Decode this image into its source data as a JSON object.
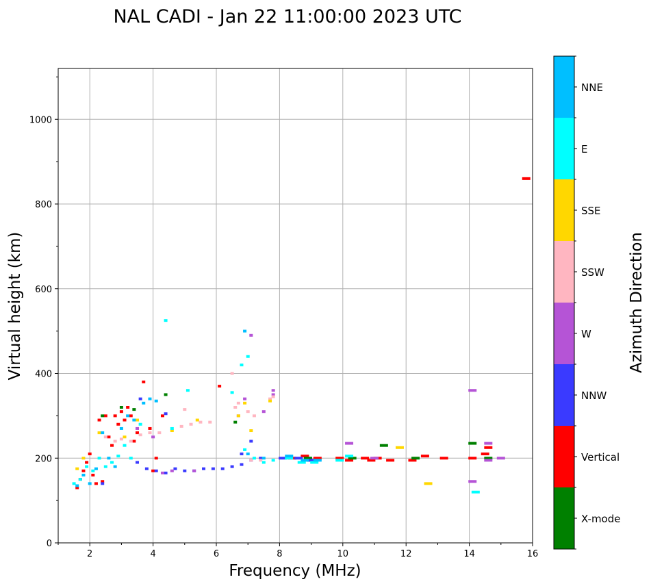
{
  "chart_data": {
    "type": "scatter",
    "title": "NAL CADI - Jan 22 11:00:00 2023 UTC",
    "xlabel": "Frequency (MHz)",
    "ylabel": "Virtual height (km)",
    "xlim": [
      1,
      16
    ],
    "ylim": [
      0,
      1120
    ],
    "xticks": [
      2,
      4,
      6,
      8,
      10,
      12,
      14,
      16
    ],
    "yticks": [
      0,
      200,
      400,
      600,
      800,
      1000
    ],
    "grid": true,
    "colorbar": {
      "label": "Azimuth Direction",
      "categories": [
        "X-mode",
        "Vertical",
        "NNW",
        "W",
        "SSW",
        "SSE",
        "E",
        "NNE"
      ],
      "colors": {
        "X-mode": "#008000",
        "Vertical": "#ff0000",
        "NNW": "#3a3aff",
        "W": "#b554d6",
        "SSW": "#ffb6c1",
        "SSE": "#ffd700",
        "E": "#00ffff",
        "NNE": "#00bfff"
      }
    },
    "series": [
      {
        "name": "Vertical",
        "points": [
          [
            1.6,
            130
          ],
          [
            1.7,
            150
          ],
          [
            1.8,
            170
          ],
          [
            1.9,
            190
          ],
          [
            2.0,
            210
          ],
          [
            2.1,
            160
          ],
          [
            2.2,
            140
          ],
          [
            2.3,
            290
          ],
          [
            2.4,
            145
          ],
          [
            2.5,
            300
          ],
          [
            2.6,
            250
          ],
          [
            2.7,
            230
          ],
          [
            2.8,
            300
          ],
          [
            2.9,
            280
          ],
          [
            3.0,
            310
          ],
          [
            3.1,
            290
          ],
          [
            3.2,
            320
          ],
          [
            3.3,
            300
          ],
          [
            3.4,
            240
          ],
          [
            3.5,
            260
          ],
          [
            3.7,
            380
          ],
          [
            3.9,
            270
          ],
          [
            4.0,
            170
          ],
          [
            4.1,
            200
          ],
          [
            4.3,
            300
          ],
          [
            6.1,
            370
          ],
          [
            8.4,
            200
          ],
          [
            8.8,
            205
          ],
          [
            9.0,
            195
          ],
          [
            9.2,
            200
          ],
          [
            9.9,
            200
          ],
          [
            10.2,
            195
          ],
          [
            10.7,
            200
          ],
          [
            10.9,
            195
          ],
          [
            11.1,
            200
          ],
          [
            11.5,
            195
          ],
          [
            12.2,
            195
          ],
          [
            12.6,
            205
          ],
          [
            13.2,
            200
          ],
          [
            14.1,
            200
          ],
          [
            14.5,
            210
          ],
          [
            14.6,
            225
          ],
          [
            15.8,
            860
          ]
        ]
      },
      {
        "name": "X-mode",
        "points": [
          [
            2.4,
            300
          ],
          [
            3.0,
            320
          ],
          [
            3.4,
            315
          ],
          [
            4.4,
            350
          ],
          [
            6.6,
            285
          ],
          [
            8.9,
            200
          ],
          [
            10.3,
            200
          ],
          [
            11.3,
            230
          ],
          [
            12.3,
            200
          ],
          [
            14.1,
            235
          ],
          [
            14.6,
            200
          ]
        ]
      },
      {
        "name": "NNW",
        "points": [
          [
            2.4,
            140
          ],
          [
            3.5,
            190
          ],
          [
            3.8,
            175
          ],
          [
            4.1,
            170
          ],
          [
            4.4,
            165
          ],
          [
            4.7,
            175
          ],
          [
            5.0,
            170
          ],
          [
            5.3,
            170
          ],
          [
            5.6,
            175
          ],
          [
            5.9,
            175
          ],
          [
            6.2,
            175
          ],
          [
            6.5,
            180
          ],
          [
            6.8,
            185
          ],
          [
            7.1,
            195
          ],
          [
            7.4,
            200
          ],
          [
            8.1,
            200
          ],
          [
            8.6,
            200
          ],
          [
            9.0,
            195
          ],
          [
            6.8,
            210
          ],
          [
            7.1,
            240
          ],
          [
            4.4,
            305
          ],
          [
            3.6,
            340
          ]
        ]
      },
      {
        "name": "W",
        "points": [
          [
            3.5,
            270
          ],
          [
            4.0,
            250
          ],
          [
            4.3,
            165
          ],
          [
            4.6,
            170
          ],
          [
            5.3,
            170
          ],
          [
            6.7,
            300
          ],
          [
            6.9,
            340
          ],
          [
            7.5,
            310
          ],
          [
            7.8,
            350
          ],
          [
            7.8,
            360
          ],
          [
            7.1,
            490
          ],
          [
            10.2,
            235
          ],
          [
            11.0,
            200
          ],
          [
            14.1,
            360
          ],
          [
            14.6,
            235
          ],
          [
            14.6,
            195
          ],
          [
            15.0,
            200
          ],
          [
            14.1,
            145
          ]
        ]
      },
      {
        "name": "SSW",
        "points": [
          [
            2.5,
            250
          ],
          [
            2.8,
            240
          ],
          [
            3.0,
            245
          ],
          [
            3.3,
            240
          ],
          [
            3.6,
            255
          ],
          [
            3.9,
            260
          ],
          [
            4.2,
            260
          ],
          [
            4.9,
            275
          ],
          [
            5.2,
            280
          ],
          [
            5.5,
            285
          ],
          [
            5.8,
            285
          ],
          [
            6.5,
            400
          ],
          [
            6.6,
            320
          ],
          [
            6.7,
            330
          ],
          [
            7.0,
            310
          ],
          [
            7.2,
            300
          ],
          [
            7.7,
            340
          ],
          [
            7.8,
            345
          ],
          [
            7.1,
            195
          ],
          [
            7.4,
            195
          ],
          [
            5.0,
            315
          ]
        ]
      },
      {
        "name": "SSE",
        "points": [
          [
            1.6,
            175
          ],
          [
            1.8,
            200
          ],
          [
            2.3,
            260
          ],
          [
            3.1,
            250
          ],
          [
            3.5,
            290
          ],
          [
            4.6,
            265
          ],
          [
            5.4,
            290
          ],
          [
            6.7,
            300
          ],
          [
            6.9,
            330
          ],
          [
            7.1,
            265
          ],
          [
            7.7,
            335
          ],
          [
            11.8,
            225
          ],
          [
            12.7,
            140
          ]
        ]
      },
      {
        "name": "E",
        "points": [
          [
            1.5,
            140
          ],
          [
            1.7,
            150
          ],
          [
            1.9,
            180
          ],
          [
            2.1,
            170
          ],
          [
            2.3,
            200
          ],
          [
            2.5,
            180
          ],
          [
            2.7,
            190
          ],
          [
            2.9,
            205
          ],
          [
            3.1,
            230
          ],
          [
            3.3,
            200
          ],
          [
            3.6,
            280
          ],
          [
            4.4,
            525
          ],
          [
            4.6,
            270
          ],
          [
            5.1,
            360
          ],
          [
            6.5,
            355
          ],
          [
            6.8,
            420
          ],
          [
            6.9,
            220
          ],
          [
            7.2,
            200
          ],
          [
            7.5,
            190
          ],
          [
            7.8,
            195
          ],
          [
            8.3,
            200
          ],
          [
            8.7,
            190
          ],
          [
            9.1,
            190
          ],
          [
            9.9,
            195
          ],
          [
            10.2,
            205
          ],
          [
            14.2,
            120
          ],
          [
            7.0,
            440
          ]
        ]
      },
      {
        "name": "NNE",
        "points": [
          [
            1.6,
            135
          ],
          [
            1.8,
            160
          ],
          [
            2.0,
            140
          ],
          [
            2.2,
            175
          ],
          [
            2.4,
            260
          ],
          [
            2.6,
            200
          ],
          [
            2.8,
            180
          ],
          [
            3.0,
            270
          ],
          [
            3.2,
            300
          ],
          [
            3.4,
            290
          ],
          [
            3.7,
            330
          ],
          [
            3.9,
            340
          ],
          [
            4.1,
            335
          ],
          [
            6.9,
            500
          ],
          [
            7.0,
            210
          ],
          [
            7.5,
            200
          ],
          [
            8.3,
            205
          ],
          [
            8.8,
            195
          ],
          [
            9.2,
            195
          ]
        ]
      }
    ]
  }
}
